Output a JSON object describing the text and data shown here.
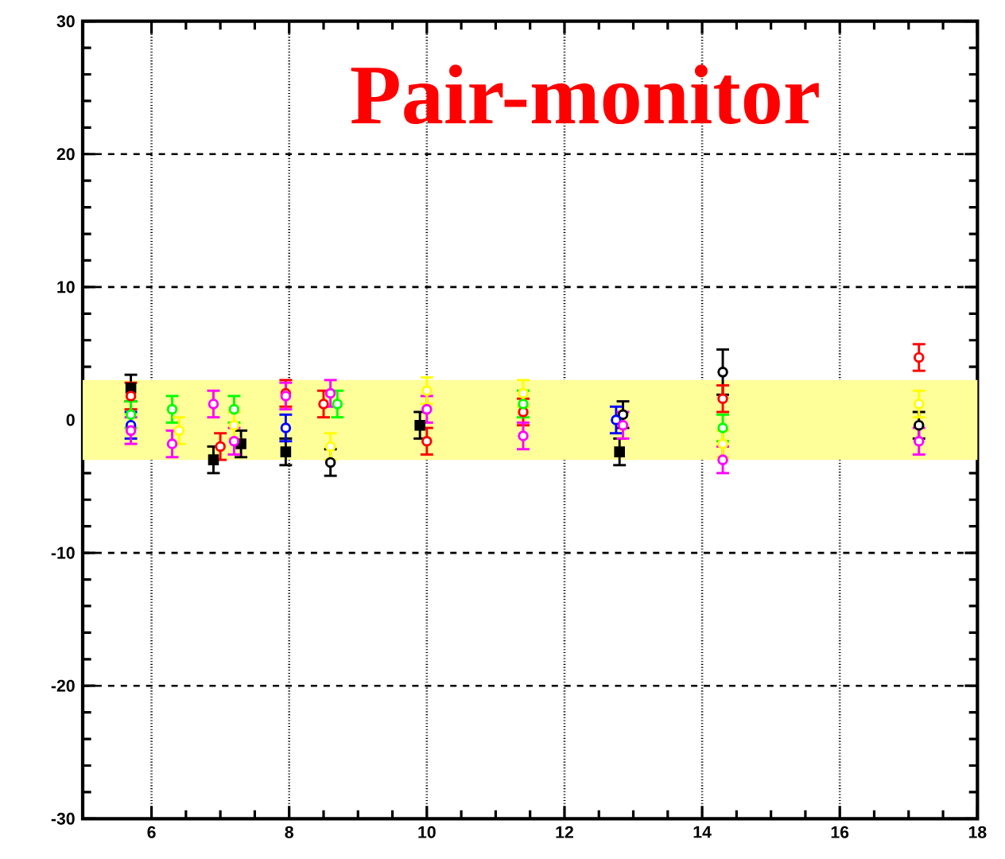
{
  "chart_data": {
    "type": "scatter",
    "title": "Pair-monitor",
    "xlim": [
      5,
      18
    ],
    "xticks": [
      6,
      8,
      10,
      12,
      14,
      16,
      18
    ],
    "ylim": [
      -30,
      30
    ],
    "yticks": [
      -30,
      -20,
      -10,
      0,
      10,
      20,
      30
    ],
    "grid": true,
    "bands": [
      {
        "axis": "y",
        "from": -3,
        "to": 3,
        "color": "#ffff99"
      }
    ],
    "series": [
      {
        "color": "#000000",
        "marker": "square",
        "x": [
          5.7,
          6.9,
          7.3,
          7.95,
          9.9,
          12.8
        ],
        "values": [
          2.4,
          -3.0,
          -1.8,
          -2.4,
          -0.4,
          -2.4
        ],
        "errors": [
          1,
          1,
          1,
          1,
          1,
          1
        ]
      },
      {
        "color": "#000000",
        "marker": "circle",
        "x": [
          8.6,
          12.85,
          14.3,
          17.15
        ],
        "values": [
          -3.2,
          0.4,
          3.6,
          -0.4
        ],
        "errors": [
          1,
          1,
          1.7,
          1
        ]
      },
      {
        "color": "#ff0000",
        "marker": "circle",
        "x": [
          5.7,
          7.95,
          10.0,
          17.15,
          7.0,
          8.5,
          11.4,
          14.3
        ],
        "values": [
          1.8,
          2.0,
          -1.6,
          4.7,
          -2.0,
          1.2,
          0.6,
          1.6
        ],
        "errors": [
          1,
          1,
          1,
          1,
          1,
          1,
          1,
          1
        ]
      },
      {
        "color": "#00ff00",
        "marker": "circle",
        "x": [
          5.7,
          6.3,
          7.2,
          8.7,
          11.4,
          14.3
        ],
        "values": [
          0.4,
          0.8,
          0.8,
          1.2,
          1.2,
          -0.6
        ],
        "errors": [
          1,
          1,
          1,
          1,
          1,
          1
        ]
      },
      {
        "color": "#0000ff",
        "marker": "circle",
        "x": [
          5.7,
          7.95,
          12.75
        ],
        "values": [
          -0.4,
          -0.6,
          0.0
        ],
        "errors": [
          1,
          1,
          1
        ]
      },
      {
        "color": "#ff00ff",
        "marker": "circle",
        "x": [
          5.7,
          6.3,
          6.9,
          7.2,
          7.95,
          8.6,
          10.0,
          11.4,
          12.85,
          14.3,
          17.15
        ],
        "values": [
          -0.8,
          -1.8,
          1.2,
          -1.6,
          1.8,
          2.0,
          0.8,
          -1.2,
          -0.4,
          -3.0,
          -1.6
        ],
        "errors": [
          1,
          1,
          1,
          1,
          1,
          1,
          1,
          1,
          1,
          1,
          1
        ]
      },
      {
        "color": "#ffff00",
        "marker": "circle",
        "x": [
          6.4,
          7.2,
          8.6,
          10.0,
          11.4,
          14.3,
          17.15
        ],
        "values": [
          -0.8,
          -0.4,
          -2.0,
          2.2,
          2.0,
          -1.8,
          1.2
        ],
        "errors": [
          1,
          1,
          1,
          1,
          1,
          1,
          1
        ]
      }
    ]
  }
}
